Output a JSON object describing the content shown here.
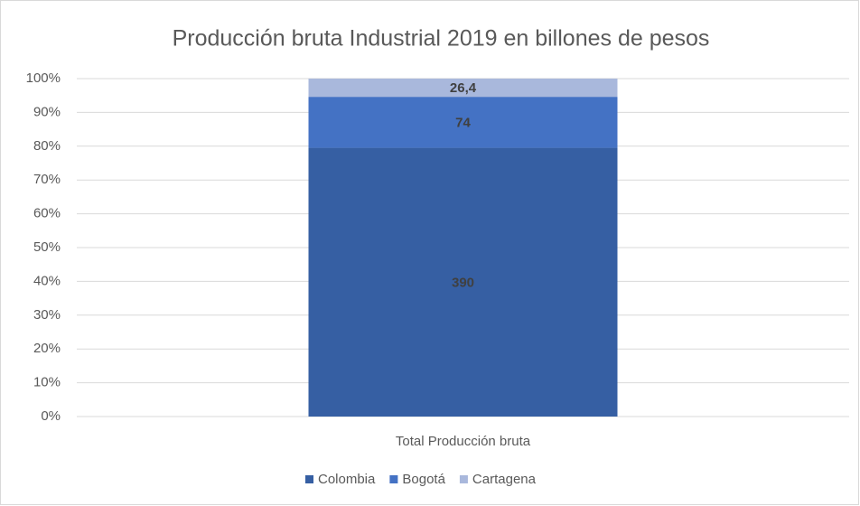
{
  "chart_data": {
    "type": "bar",
    "stacked": "percent",
    "title": "Producción bruta Industrial 2019 en billones de pesos",
    "categories": [
      "Total Producción bruta"
    ],
    "series": [
      {
        "name": "Colombia",
        "color": "#365fa3",
        "values": [
          390
        ]
      },
      {
        "name": "Bogotá",
        "color": "#4472c4",
        "values": [
          74
        ]
      },
      {
        "name": "Cartagena",
        "color": "#a9b8dc",
        "values": [
          26.4
        ],
        "value_labels": [
          "26,4"
        ]
      }
    ],
    "ylim": [
      0,
      100
    ],
    "yticks": [
      {
        "value": 0,
        "label": "0%"
      },
      {
        "value": 10,
        "label": "10%"
      },
      {
        "value": 20,
        "label": "20%"
      },
      {
        "value": 30,
        "label": "30%"
      },
      {
        "value": 40,
        "label": "40%"
      },
      {
        "value": 50,
        "label": "50%"
      },
      {
        "value": 60,
        "label": "60%"
      },
      {
        "value": 70,
        "label": "70%"
      },
      {
        "value": 80,
        "label": "80%"
      },
      {
        "value": 90,
        "label": "90%"
      },
      {
        "value": 100,
        "label": "100%"
      }
    ],
    "grid": true,
    "legend": "bottom"
  }
}
